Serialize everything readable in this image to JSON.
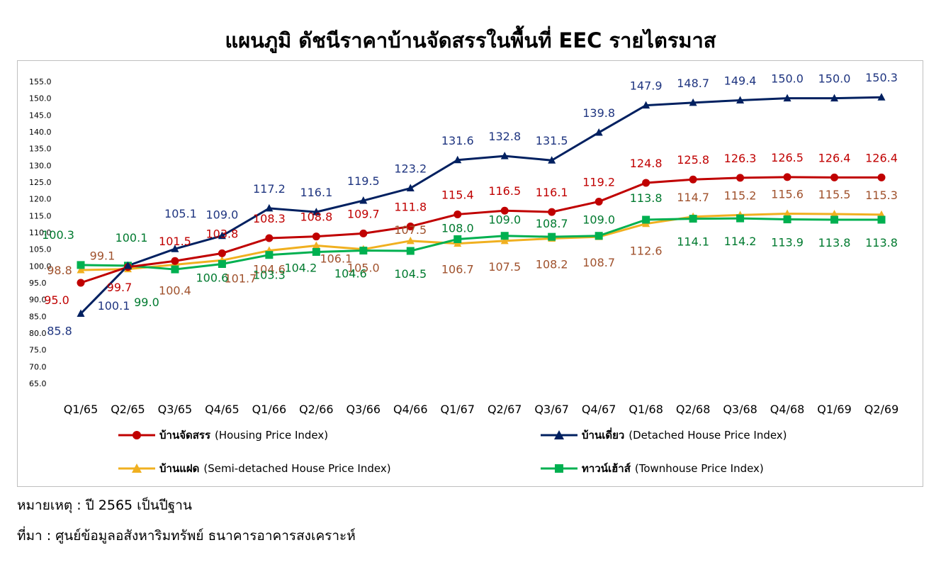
{
  "title": "แผนภูมิ ดัชนีราคาบ้านจัดสรรในพื้นที่ EEC รายไตรมาส",
  "note": "หมายเหตุ : ปี 2565 เป็นปีฐาน",
  "source": "ที่มา : ศูนย์ข้อมูลอสังหาริมทรัพย์ ธนาคารอาคารสงเคราะห์",
  "legend": [
    {
      "name": "บ้านจัดสรร",
      "desc": "(Housing Price Index)"
    },
    {
      "name": "บ้านเดี่ยว",
      "desc": "(Detached House Price Index)"
    },
    {
      "name": "บ้านแฝด",
      "desc": "(Semi-detached House Price Index)"
    },
    {
      "name": "ทาวน์เฮ้าส์",
      "desc": "(Townhouse Price Index)"
    }
  ],
  "chart_data": {
    "type": "line",
    "categories": [
      "Q1/65",
      "Q2/65",
      "Q3/65",
      "Q4/65",
      "Q1/66",
      "Q2/66",
      "Q3/66",
      "Q4/66",
      "Q1/67",
      "Q2/67",
      "Q3/67",
      "Q4/67",
      "Q1/68",
      "Q2/68",
      "Q3/68",
      "Q4/68",
      "Q1/69",
      "Q2/69"
    ],
    "ylim": [
      65.0,
      155.0
    ],
    "yticks": [
      "65.0",
      "70.0",
      "75.0",
      "80.0",
      "85.0",
      "90.0",
      "95.0",
      "100.0",
      "105.0",
      "110.0",
      "115.0",
      "120.0",
      "125.0",
      "130.0",
      "135.0",
      "140.0",
      "145.0",
      "150.0",
      "155.0"
    ],
    "grid": false,
    "legend_position": "bottom",
    "series": [
      {
        "name": "บ้านจัดสรร (Housing Price Index)",
        "color": "#c00000",
        "marker": "circle",
        "label_color": "#c00000",
        "values": [
          95.0,
          99.7,
          101.5,
          103.8,
          108.3,
          108.8,
          109.7,
          111.8,
          115.4,
          116.5,
          116.1,
          119.2,
          124.8,
          125.8,
          126.3,
          126.5,
          126.4,
          126.4
        ]
      },
      {
        "name": "บ้านเดี่ยว (Detached House Price Index)",
        "color": "#002060",
        "marker": "triangle",
        "label_color": "#1f3580",
        "values": [
          85.8,
          100.1,
          105.1,
          109.0,
          117.2,
          116.1,
          119.5,
          123.2,
          131.6,
          132.8,
          131.5,
          139.8,
          147.9,
          148.7,
          149.4,
          150.0,
          150.0,
          150.3
        ]
      },
      {
        "name": "บ้านแฝด (Semi-detached House Price Index)",
        "color": "#f0b020",
        "marker": "triangle",
        "label_color": "#a0522d",
        "values": [
          98.8,
          99.1,
          100.4,
          101.7,
          104.6,
          106.1,
          105.0,
          107.5,
          106.7,
          107.5,
          108.2,
          108.7,
          112.6,
          114.7,
          115.2,
          115.6,
          115.5,
          115.3
        ]
      },
      {
        "name": "ทาวน์เฮ้าส์ (Townhouse Price Index)",
        "color": "#00b050",
        "marker": "square",
        "label_color": "#007a2f",
        "values": [
          100.3,
          100.1,
          99.0,
          100.6,
          103.3,
          104.2,
          104.6,
          104.5,
          108.0,
          109.0,
          108.7,
          109.0,
          113.8,
          114.1,
          114.2,
          113.9,
          113.8,
          113.8
        ]
      }
    ]
  }
}
